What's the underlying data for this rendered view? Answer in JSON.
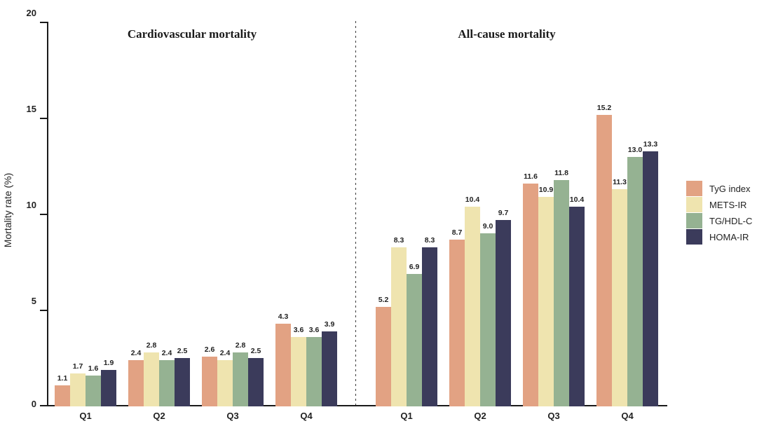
{
  "figure": {
    "y_axis_label": "Mortality rate (%)",
    "legend": [
      {
        "name": "TyG index",
        "color": "#E2A283"
      },
      {
        "name": "METS-IR",
        "color": "#EFE4AF"
      },
      {
        "name": "TG/HDL-C",
        "color": "#95B292"
      },
      {
        "name": "HOMA-IR",
        "color": "#3B3B5B"
      }
    ]
  },
  "chart_data": {
    "type": "bar",
    "title": "",
    "xlabel": "",
    "ylabel": "Mortality rate (%)",
    "ylim": [
      0,
      20
    ],
    "y_ticks": [
      0,
      5,
      10,
      15,
      20
    ],
    "grid": false,
    "legend_position": "right-outside",
    "categories": [
      "Q1",
      "Q2",
      "Q3",
      "Q4"
    ],
    "series_colors": {
      "TyG index": "#E2A283",
      "METS-IR": "#EFE4AF",
      "TG/HDL-C": "#95B292",
      "HOMA-IR": "#3B3B5B"
    },
    "panels": [
      {
        "title": "Cardiovascular mortality",
        "series": [
          {
            "name": "TyG index",
            "values": [
              1.1,
              2.4,
              2.6,
              4.3
            ]
          },
          {
            "name": "METS-IR",
            "values": [
              1.7,
              2.8,
              2.4,
              3.6
            ]
          },
          {
            "name": "TG/HDL-C",
            "values": [
              1.6,
              2.4,
              2.8,
              3.6
            ]
          },
          {
            "name": "HOMA-IR",
            "values": [
              1.9,
              2.5,
              2.5,
              3.9
            ]
          }
        ]
      },
      {
        "title": "All-cause mortality",
        "series": [
          {
            "name": "TyG index",
            "values": [
              5.2,
              8.7,
              11.6,
              15.2
            ]
          },
          {
            "name": "METS-IR",
            "values": [
              8.3,
              10.4,
              10.9,
              11.3
            ]
          },
          {
            "name": "TG/HDL-C",
            "values": [
              6.9,
              9.0,
              11.8,
              13.0
            ]
          },
          {
            "name": "HOMA-IR",
            "values": [
              8.3,
              9.7,
              10.4,
              13.3
            ]
          }
        ]
      }
    ]
  }
}
